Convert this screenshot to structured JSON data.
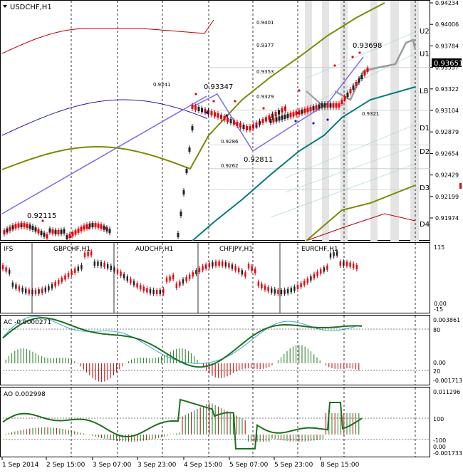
{
  "window": {
    "symbol_label": "USDCHF,H1",
    "current_price": "0.93651"
  },
  "main_panel": {
    "price_axis": [
      "0.94234",
      "0.94006",
      "0.93784",
      "0.93557",
      "0.93322",
      "0.93104",
      "0.92879",
      "0.92654",
      "0.92429",
      "0.92199",
      "0.91974"
    ],
    "pivot_labels": [
      "U2",
      "U1",
      "LB",
      "D1",
      "D2",
      "D3",
      "D4"
    ],
    "chart_annotations": [
      "0.9401",
      "0.9377",
      "0.9353",
      "0.9329",
      "0.9241",
      "0.9286",
      "0.9262",
      "0.9321"
    ],
    "swing_labels": [
      "0.93698",
      "0.93347",
      "0.92811",
      "0.92115"
    ]
  },
  "correlation_panel": {
    "label": "IFS",
    "pairs": [
      "GBPCHF,H1",
      "AUDCHF,H1",
      "CHFJPY,H1",
      "EURCHF,H1"
    ],
    "axis": [
      "115",
      "0.00",
      "-15"
    ]
  },
  "ac_panel": {
    "label": "AC -0.0000271",
    "axis_right": [
      "0.003861",
      "0.00",
      "-0.001713"
    ],
    "axis_inner": [
      "80",
      "20"
    ]
  },
  "ao_panel": {
    "label": "AO 0.002998",
    "axis_right": [
      "0.011296",
      "0.00",
      "-0.001733"
    ],
    "axis_inner": [
      "100",
      "-100"
    ]
  },
  "time_axis": [
    "1 Sep 2014",
    "2 Sep 15:00",
    "3 Sep 07:00",
    "3 Sep 23:00",
    "4 Sep 15:00",
    "5 Sep 07:00",
    "5 Sep 23:00",
    "8 Sep 15:00"
  ],
  "colors": {
    "bull": "#222222",
    "bear": "#e8000b",
    "blue_band": "#1c1ca8",
    "olive_band": "#7a8a00",
    "red_band": "#c00000",
    "teal_band": "#007a7a",
    "zigzag": "#7b68ee",
    "oscillator_green": "#1f6f1f",
    "oscillator_blue": "#3aaad0"
  },
  "chart_data": {
    "type": "candlestick",
    "symbol": "USDCHF",
    "timeframe": "H1",
    "y_range": [
      0.919,
      0.943
    ],
    "swing_points": [
      {
        "time": "4 Sep 15:00",
        "value": 0.93347
      },
      {
        "time": "5 Sep 07:00",
        "value": 0.92811
      },
      {
        "time": "8 Sep 15:00",
        "value": 0.93698
      },
      {
        "time": "1 Sep 2014",
        "value": 0.92115
      }
    ],
    "last_price": 0.93651
  }
}
